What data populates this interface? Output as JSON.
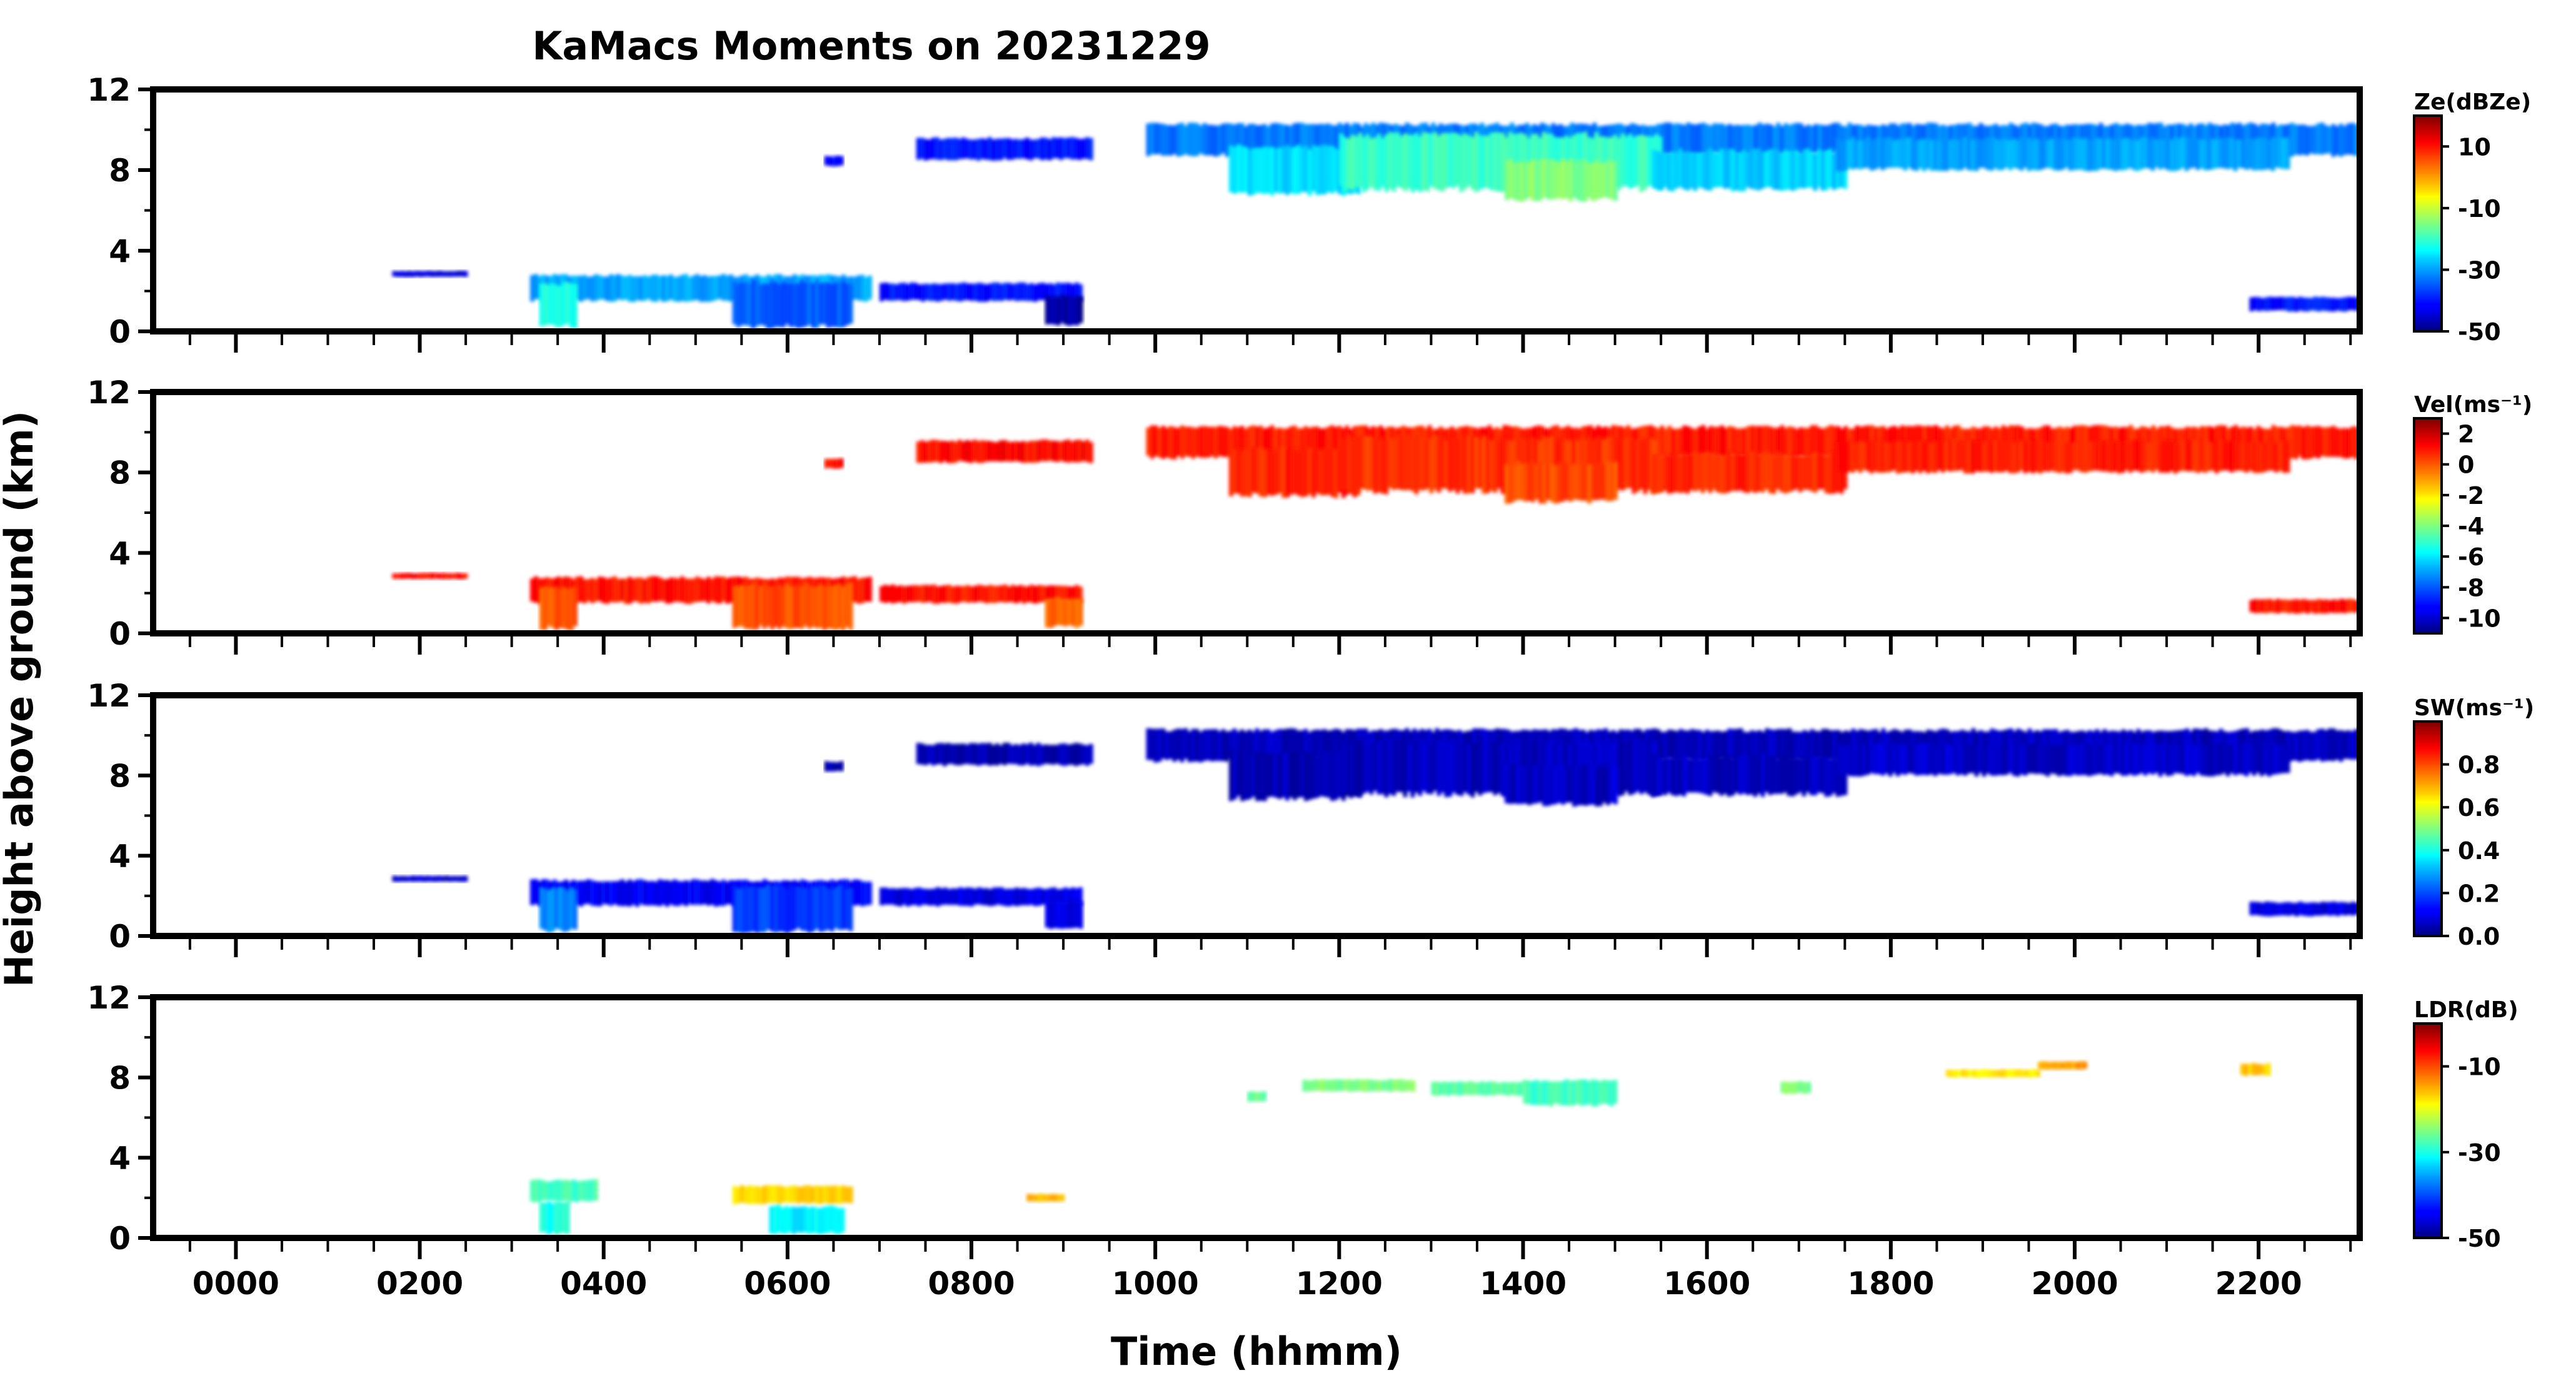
{
  "figure": {
    "title": "KaMacs Moments on 20231229",
    "xlabel": "Time (hhmm)",
    "ylabel": "Height above ground (km)"
  },
  "chart_data": {
    "type": "heatmap",
    "x_axis": {
      "range_hours": [
        -0.9,
        23.1
      ],
      "major_ticks": [
        0,
        2,
        4,
        6,
        8,
        10,
        12,
        14,
        16,
        18,
        20,
        22
      ],
      "major_tick_labels": [
        "0000",
        "0200",
        "0400",
        "0600",
        "0800",
        "1000",
        "1200",
        "1400",
        "1600",
        "1800",
        "2000",
        "2200"
      ],
      "minor_step_hours": 0.5
    },
    "y_axis": {
      "range_km": [
        0,
        12
      ],
      "major_ticks": [
        0,
        4,
        8,
        12
      ],
      "major_tick_labels": [
        "0",
        "4",
        "8",
        "12"
      ],
      "minor_step_km": 2
    },
    "colormap": "jet",
    "panels": [
      {
        "key": "ze",
        "colorbar_label": "Ze(dBZe)",
        "colorbar_range": [
          -50,
          20
        ],
        "colorbar_ticks": [
          10,
          -10,
          -30,
          -50
        ],
        "colorbar_tick_labels": [
          "10",
          "-10",
          "-30",
          "-50"
        ],
        "echo_regions": [
          {
            "t0": 9.9,
            "t1": 23.1,
            "b": 8.7,
            "h": 10.3,
            "v": -33
          },
          {
            "t0": 10.8,
            "t1": 12.2,
            "b": 6.8,
            "h": 9.2,
            "v": -26
          },
          {
            "t0": 12.0,
            "t1": 15.5,
            "b": 7.0,
            "h": 9.8,
            "v": -20
          },
          {
            "t0": 13.8,
            "t1": 15.0,
            "b": 6.5,
            "h": 8.5,
            "v": -15
          },
          {
            "t0": 15.4,
            "t1": 17.5,
            "b": 7.0,
            "h": 9.0,
            "v": -27
          },
          {
            "t0": 17.4,
            "t1": 22.3,
            "b": 8.0,
            "h": 9.6,
            "v": -30
          },
          {
            "t0": 7.4,
            "t1": 9.3,
            "b": 8.5,
            "h": 9.6,
            "v": -40
          },
          {
            "t0": 6.4,
            "t1": 6.6,
            "b": 8.2,
            "h": 8.7,
            "v": -42
          },
          {
            "t0": 3.2,
            "t1": 6.9,
            "b": 1.5,
            "h": 2.8,
            "v": -30
          },
          {
            "t0": 3.3,
            "t1": 3.7,
            "b": 0.2,
            "h": 2.4,
            "v": -22
          },
          {
            "t0": 5.4,
            "t1": 6.7,
            "b": 0.2,
            "h": 2.5,
            "v": -35
          },
          {
            "t0": 7.0,
            "t1": 9.2,
            "b": 1.5,
            "h": 2.4,
            "v": -40
          },
          {
            "t0": 8.8,
            "t1": 9.2,
            "b": 0.3,
            "h": 1.8,
            "v": -48
          },
          {
            "t0": 1.7,
            "t1": 2.5,
            "b": 2.7,
            "h": 3.0,
            "v": -44
          },
          {
            "t0": 21.9,
            "t1": 23.1,
            "b": 1.0,
            "h": 1.7,
            "v": -40
          }
        ]
      },
      {
        "key": "vel",
        "colorbar_label": "Vel(ms⁻¹)",
        "colorbar_range": [
          -11,
          3
        ],
        "colorbar_ticks": [
          2,
          0,
          -2,
          -4,
          -6,
          -8,
          -10
        ],
        "colorbar_tick_labels": [
          "2",
          "0",
          "-2",
          "-4",
          "-6",
          "-8",
          "-10"
        ],
        "echo_regions": [
          {
            "t0": 9.9,
            "t1": 23.1,
            "b": 8.7,
            "h": 10.3,
            "v": 0.9
          },
          {
            "t0": 10.8,
            "t1": 12.2,
            "b": 6.8,
            "h": 9.2,
            "v": 0.8
          },
          {
            "t0": 12.0,
            "t1": 15.5,
            "b": 7.0,
            "h": 9.8,
            "v": 0.6
          },
          {
            "t0": 13.8,
            "t1": 15.0,
            "b": 6.5,
            "h": 8.5,
            "v": 0.3
          },
          {
            "t0": 15.4,
            "t1": 17.5,
            "b": 7.0,
            "h": 9.0,
            "v": 0.8
          },
          {
            "t0": 17.4,
            "t1": 22.3,
            "b": 8.0,
            "h": 9.6,
            "v": 0.9
          },
          {
            "t0": 7.4,
            "t1": 9.3,
            "b": 8.5,
            "h": 9.6,
            "v": 1.1
          },
          {
            "t0": 6.4,
            "t1": 6.6,
            "b": 8.2,
            "h": 8.7,
            "v": 1.0
          },
          {
            "t0": 3.2,
            "t1": 6.9,
            "b": 1.5,
            "h": 2.8,
            "v": 1.0
          },
          {
            "t0": 3.3,
            "t1": 3.7,
            "b": 0.2,
            "h": 2.4,
            "v": 0.1
          },
          {
            "t0": 5.4,
            "t1": 6.7,
            "b": 0.2,
            "h": 2.5,
            "v": 0.2
          },
          {
            "t0": 7.0,
            "t1": 9.2,
            "b": 1.5,
            "h": 2.4,
            "v": 1.0
          },
          {
            "t0": 8.8,
            "t1": 9.2,
            "b": 0.3,
            "h": 1.8,
            "v": 0.0
          },
          {
            "t0": 1.7,
            "t1": 2.5,
            "b": 2.7,
            "h": 3.0,
            "v": 1.2
          },
          {
            "t0": 21.9,
            "t1": 23.1,
            "b": 1.0,
            "h": 1.7,
            "v": 1.0
          }
        ]
      },
      {
        "key": "sw",
        "colorbar_label": "SW(ms⁻¹)",
        "colorbar_range": [
          0,
          1
        ],
        "colorbar_ticks": [
          0.8,
          0.6,
          0.4,
          0.2,
          0.0
        ],
        "colorbar_tick_labels": [
          "0.8",
          "0.6",
          "0.4",
          "0.2",
          "0.0"
        ],
        "echo_regions": [
          {
            "t0": 9.9,
            "t1": 23.1,
            "b": 8.7,
            "h": 10.3,
            "v": 0.06
          },
          {
            "t0": 10.8,
            "t1": 12.2,
            "b": 6.8,
            "h": 9.2,
            "v": 0.05
          },
          {
            "t0": 12.0,
            "t1": 15.5,
            "b": 7.0,
            "h": 9.8,
            "v": 0.06
          },
          {
            "t0": 13.8,
            "t1": 15.0,
            "b": 6.5,
            "h": 8.5,
            "v": 0.07
          },
          {
            "t0": 15.4,
            "t1": 17.5,
            "b": 7.0,
            "h": 9.0,
            "v": 0.06
          },
          {
            "t0": 17.4,
            "t1": 22.3,
            "b": 8.0,
            "h": 9.6,
            "v": 0.07
          },
          {
            "t0": 7.4,
            "t1": 9.3,
            "b": 8.5,
            "h": 9.6,
            "v": 0.05
          },
          {
            "t0": 6.4,
            "t1": 6.6,
            "b": 8.2,
            "h": 8.7,
            "v": 0.05
          },
          {
            "t0": 3.2,
            "t1": 6.9,
            "b": 1.5,
            "h": 2.8,
            "v": 0.12
          },
          {
            "t0": 3.3,
            "t1": 3.7,
            "b": 0.2,
            "h": 2.4,
            "v": 0.25
          },
          {
            "t0": 5.4,
            "t1": 6.7,
            "b": 0.2,
            "h": 2.5,
            "v": 0.18
          },
          {
            "t0": 7.0,
            "t1": 9.2,
            "b": 1.5,
            "h": 2.4,
            "v": 0.1
          },
          {
            "t0": 8.8,
            "t1": 9.2,
            "b": 0.3,
            "h": 1.8,
            "v": 0.1
          },
          {
            "t0": 1.7,
            "t1": 2.5,
            "b": 2.7,
            "h": 3.0,
            "v": 0.08
          },
          {
            "t0": 21.9,
            "t1": 23.1,
            "b": 1.0,
            "h": 1.7,
            "v": 0.1
          }
        ]
      },
      {
        "key": "ldr",
        "colorbar_label": "LDR(dB)",
        "colorbar_range": [
          -50,
          0
        ],
        "colorbar_ticks": [
          -10,
          -30,
          -50
        ],
        "colorbar_tick_labels": [
          "-10",
          "-30",
          "-50"
        ],
        "echo_regions": [
          {
            "t0": 3.2,
            "t1": 3.9,
            "b": 1.8,
            "h": 2.9,
            "v": -28
          },
          {
            "t0": 3.3,
            "t1": 3.6,
            "b": 0.2,
            "h": 1.8,
            "v": -30
          },
          {
            "t0": 5.4,
            "t1": 6.7,
            "b": 1.7,
            "h": 2.6,
            "v": -17
          },
          {
            "t0": 5.8,
            "t1": 6.6,
            "b": 0.2,
            "h": 1.6,
            "v": -32
          },
          {
            "t0": 8.6,
            "t1": 9.0,
            "b": 1.8,
            "h": 2.2,
            "v": -15
          },
          {
            "t0": 11.6,
            "t1": 12.8,
            "b": 7.3,
            "h": 7.9,
            "v": -25
          },
          {
            "t0": 13.0,
            "t1": 14.0,
            "b": 7.1,
            "h": 7.8,
            "v": -27
          },
          {
            "t0": 14.0,
            "t1": 15.0,
            "b": 6.6,
            "h": 7.9,
            "v": -28
          },
          {
            "t0": 11.0,
            "t1": 11.2,
            "b": 6.8,
            "h": 7.3,
            "v": -26
          },
          {
            "t0": 16.8,
            "t1": 17.1,
            "b": 7.2,
            "h": 7.8,
            "v": -25
          },
          {
            "t0": 18.6,
            "t1": 19.6,
            "b": 8.0,
            "h": 8.4,
            "v": -18
          },
          {
            "t0": 19.6,
            "t1": 20.1,
            "b": 8.4,
            "h": 8.8,
            "v": -14
          },
          {
            "t0": 21.8,
            "t1": 22.1,
            "b": 8.1,
            "h": 8.7,
            "v": -16
          }
        ]
      }
    ]
  }
}
